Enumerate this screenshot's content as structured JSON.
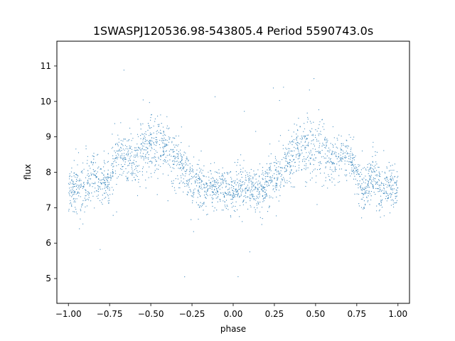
{
  "chart_data": {
    "type": "scatter",
    "title": "1SWASPJ120536.98-543805.4 Period 5590743.0s",
    "xlabel": "phase",
    "ylabel": "flux",
    "xlim": [
      -1.07,
      1.07
    ],
    "ylim": [
      4.3,
      11.7
    ],
    "xticks": [
      -1.0,
      -0.75,
      -0.5,
      -0.25,
      0.0,
      0.25,
      0.5,
      0.75,
      1.0
    ],
    "xtick_labels": [
      "−1.00",
      "−0.75",
      "−0.50",
      "−0.25",
      "0.00",
      "0.25",
      "0.50",
      "0.75",
      "1.00"
    ],
    "yticks": [
      5,
      6,
      7,
      8,
      9,
      10,
      11
    ],
    "ytick_labels": [
      "5",
      "6",
      "7",
      "8",
      "9",
      "10",
      "11"
    ],
    "grid": false,
    "legend": "none",
    "marker_color": "#1f77b4",
    "marker": "point",
    "series": [
      {
        "profile_x": [
          0.0,
          0.05,
          0.1,
          0.15,
          0.2,
          0.25,
          0.3,
          0.35,
          0.4,
          0.45,
          0.5,
          0.55,
          0.6,
          0.65,
          0.7,
          0.75,
          0.8,
          0.85,
          0.9,
          0.95,
          1.0
        ],
        "profile_mean_y": [
          7.5,
          7.6,
          7.5,
          7.5,
          7.6,
          7.8,
          8.1,
          8.4,
          8.6,
          8.7,
          8.8,
          8.7,
          8.3,
          8.4,
          8.5,
          7.8,
          7.6,
          7.9,
          7.4,
          7.6,
          7.5
        ],
        "profile_spread": [
          0.55,
          0.6,
          0.55,
          0.55,
          0.55,
          0.6,
          0.6,
          0.7,
          0.7,
          0.75,
          0.8,
          0.75,
          0.7,
          0.65,
          0.6,
          0.6,
          0.55,
          0.6,
          0.65,
          0.6,
          0.55
        ],
        "symmetric_about_zero": true
      }
    ]
  }
}
